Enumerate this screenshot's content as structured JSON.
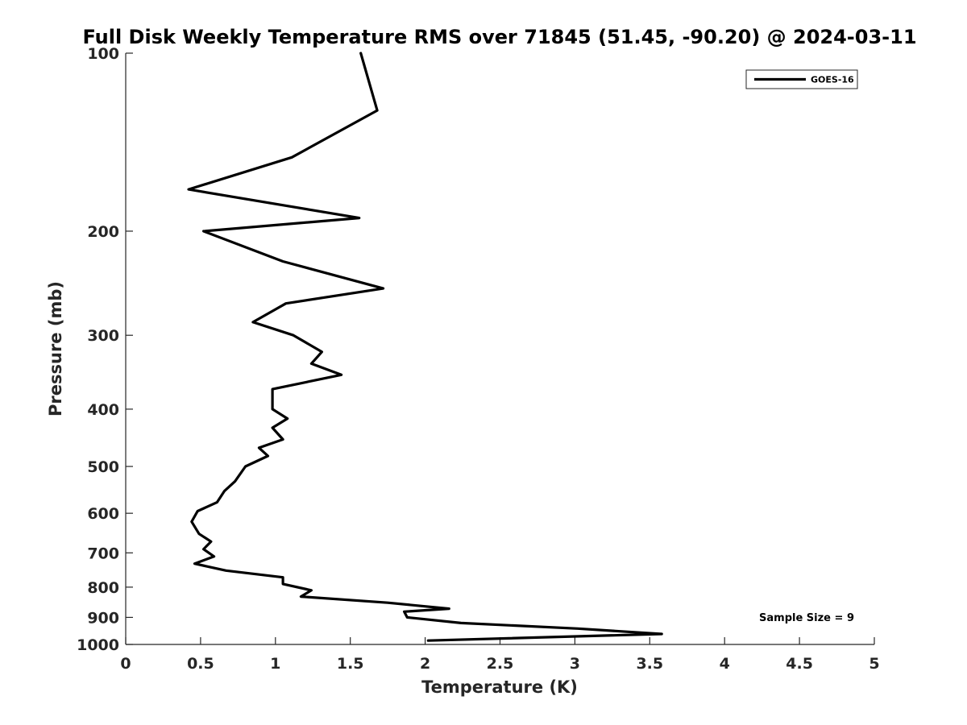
{
  "chart_data": {
    "type": "line",
    "title": "Full Disk Weekly Temperature RMS over 71845 (51.45, -90.20) @ 2024-03-11",
    "xlabel": "Temperature (K)",
    "ylabel": "Pressure (mb)",
    "xlim": [
      0,
      5
    ],
    "ylim": [
      100,
      1000
    ],
    "y_scale": "log",
    "y_reversed": true,
    "grid": false,
    "legend_position": "top-right",
    "x_ticks": [
      "0",
      "0.5",
      "1",
      "1.5",
      "2",
      "2.5",
      "3",
      "3.5",
      "4",
      "4.5",
      "5"
    ],
    "y_ticks": [
      "100",
      "200",
      "300",
      "400",
      "500",
      "600",
      "700",
      "800",
      "900",
      "1000"
    ],
    "annotation": "Sample Size = 9",
    "series": [
      {
        "name": "GOES-16",
        "color": "#000000",
        "points": [
          [
            1.57,
            100
          ],
          [
            1.68,
            125
          ],
          [
            1.11,
            150
          ],
          [
            0.42,
            170
          ],
          [
            1.56,
            190
          ],
          [
            0.52,
            200
          ],
          [
            1.05,
            225
          ],
          [
            1.72,
            250
          ],
          [
            1.07,
            265
          ],
          [
            0.85,
            285
          ],
          [
            1.12,
            300
          ],
          [
            1.31,
            320
          ],
          [
            1.24,
            335
          ],
          [
            1.44,
            350
          ],
          [
            0.98,
            370
          ],
          [
            0.98,
            385
          ],
          [
            0.98,
            400
          ],
          [
            1.08,
            415
          ],
          [
            0.98,
            430
          ],
          [
            1.05,
            450
          ],
          [
            0.89,
            465
          ],
          [
            0.95,
            480
          ],
          [
            0.8,
            500
          ],
          [
            0.73,
            530
          ],
          [
            0.66,
            550
          ],
          [
            0.61,
            575
          ],
          [
            0.48,
            595
          ],
          [
            0.44,
            620
          ],
          [
            0.49,
            650
          ],
          [
            0.57,
            670
          ],
          [
            0.52,
            690
          ],
          [
            0.59,
            710
          ],
          [
            0.46,
            730
          ],
          [
            0.67,
            750
          ],
          [
            1.05,
            770
          ],
          [
            1.05,
            790
          ],
          [
            1.24,
            810
          ],
          [
            1.17,
            830
          ],
          [
            1.75,
            850
          ],
          [
            2.16,
            870
          ],
          [
            1.86,
            880
          ],
          [
            1.88,
            900
          ],
          [
            2.24,
            920
          ],
          [
            3.02,
            940
          ],
          [
            3.58,
            960
          ],
          [
            2.02,
            985
          ]
        ]
      }
    ]
  }
}
